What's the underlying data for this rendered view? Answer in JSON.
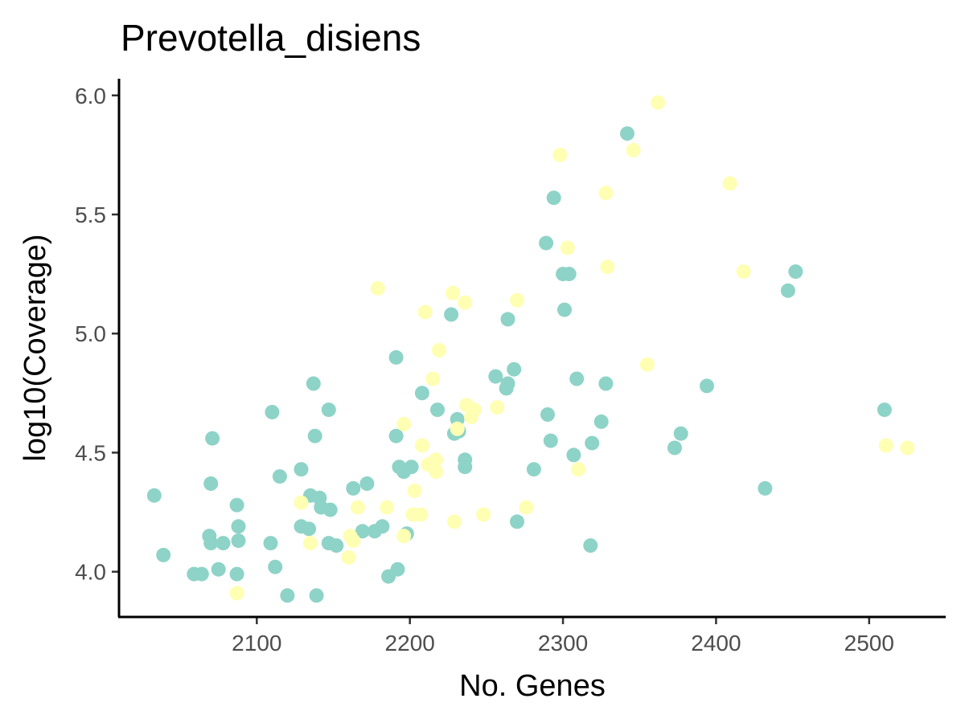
{
  "chart_data": {
    "type": "scatter",
    "title": "Prevotella_disiens",
    "xlabel": "No. Genes",
    "ylabel": "log10(Coverage)",
    "xlim": [
      2010,
      2550
    ],
    "ylim": [
      3.81,
      6.07
    ],
    "x_ticks": [
      2100,
      2200,
      2300,
      2400,
      2500
    ],
    "y_ticks": [
      4.0,
      4.5,
      5.0,
      5.5,
      6.0
    ],
    "x_tick_labels": [
      "2100",
      "2200",
      "2300",
      "2400",
      "2500"
    ],
    "y_tick_labels": [
      "4.0",
      "4.5",
      "5.0",
      "5.5",
      "6.0"
    ],
    "grid": false,
    "legend": "none",
    "series": [
      {
        "color": "#8ed3c7",
        "points": [
          [
            2033,
            4.32
          ],
          [
            2039,
            4.07
          ],
          [
            2059,
            3.99
          ],
          [
            2064,
            3.99
          ],
          [
            2069,
            4.15
          ],
          [
            2070,
            4.12
          ],
          [
            2070,
            4.37
          ],
          [
            2071,
            4.56
          ],
          [
            2075,
            4.01
          ],
          [
            2078,
            4.12
          ],
          [
            2087,
            4.28
          ],
          [
            2087,
            3.99
          ],
          [
            2088,
            4.13
          ],
          [
            2088,
            4.19
          ],
          [
            2109,
            4.12
          ],
          [
            2110,
            4.67
          ],
          [
            2112,
            4.02
          ],
          [
            2115,
            4.4
          ],
          [
            2120,
            3.9
          ],
          [
            2129,
            4.19
          ],
          [
            2129,
            4.43
          ],
          [
            2134,
            4.18
          ],
          [
            2135,
            4.32
          ],
          [
            2137,
            4.79
          ],
          [
            2138,
            4.57
          ],
          [
            2139,
            3.9
          ],
          [
            2141,
            4.31
          ],
          [
            2142,
            4.27
          ],
          [
            2147,
            4.12
          ],
          [
            2147,
            4.68
          ],
          [
            2148,
            4.26
          ],
          [
            2152,
            4.11
          ],
          [
            2163,
            4.35
          ],
          [
            2169,
            4.17
          ],
          [
            2172,
            4.37
          ],
          [
            2177,
            4.17
          ],
          [
            2182,
            4.19
          ],
          [
            2186,
            3.98
          ],
          [
            2191,
            4.57
          ],
          [
            2191,
            4.9
          ],
          [
            2192,
            4.01
          ],
          [
            2193,
            4.44
          ],
          [
            2196,
            4.42
          ],
          [
            2198,
            4.16
          ],
          [
            2201,
            4.44
          ],
          [
            2208,
            4.75
          ],
          [
            2218,
            4.68
          ],
          [
            2227,
            5.08
          ],
          [
            2229,
            4.58
          ],
          [
            2231,
            4.64
          ],
          [
            2232,
            4.59
          ],
          [
            2236,
            4.47
          ],
          [
            2236,
            4.44
          ],
          [
            2256,
            4.82
          ],
          [
            2263,
            4.77
          ],
          [
            2264,
            4.79
          ],
          [
            2264,
            5.06
          ],
          [
            2268,
            4.85
          ],
          [
            2270,
            4.21
          ],
          [
            2281,
            4.43
          ],
          [
            2289,
            5.38
          ],
          [
            2290,
            4.66
          ],
          [
            2292,
            4.55
          ],
          [
            2294,
            5.57
          ],
          [
            2300,
            5.25
          ],
          [
            2301,
            5.1
          ],
          [
            2304,
            5.25
          ],
          [
            2307,
            4.49
          ],
          [
            2309,
            4.81
          ],
          [
            2318,
            4.11
          ],
          [
            2319,
            4.54
          ],
          [
            2325,
            4.63
          ],
          [
            2328,
            4.79
          ],
          [
            2342,
            5.84
          ],
          [
            2373,
            4.52
          ],
          [
            2377,
            4.58
          ],
          [
            2394,
            4.78
          ],
          [
            2432,
            4.35
          ],
          [
            2447,
            5.18
          ],
          [
            2452,
            5.26
          ],
          [
            2510,
            4.68
          ]
        ]
      },
      {
        "color": "#ffffb3",
        "points": [
          [
            2087,
            3.91
          ],
          [
            2129,
            4.29
          ],
          [
            2135,
            4.12
          ],
          [
            2160,
            4.06
          ],
          [
            2161,
            4.15
          ],
          [
            2163,
            4.13
          ],
          [
            2166,
            4.27
          ],
          [
            2179,
            5.19
          ],
          [
            2185,
            4.27
          ],
          [
            2196,
            4.62
          ],
          [
            2196,
            4.15
          ],
          [
            2202,
            4.24
          ],
          [
            2203,
            4.34
          ],
          [
            2207,
            4.24
          ],
          [
            2208,
            4.53
          ],
          [
            2210,
            5.09
          ],
          [
            2212,
            4.45
          ],
          [
            2215,
            4.81
          ],
          [
            2217,
            4.47
          ],
          [
            2217,
            4.42
          ],
          [
            2219,
            4.93
          ],
          [
            2228,
            5.17
          ],
          [
            2229,
            4.21
          ],
          [
            2231,
            4.6
          ],
          [
            2236,
            5.13
          ],
          [
            2237,
            4.7
          ],
          [
            2240,
            4.65
          ],
          [
            2242,
            4.68
          ],
          [
            2248,
            4.24
          ],
          [
            2257,
            4.69
          ],
          [
            2270,
            5.14
          ],
          [
            2276,
            4.27
          ],
          [
            2298,
            5.75
          ],
          [
            2303,
            5.36
          ],
          [
            2310,
            4.43
          ],
          [
            2328,
            5.59
          ],
          [
            2329,
            5.28
          ],
          [
            2346,
            5.77
          ],
          [
            2355,
            4.87
          ],
          [
            2362,
            5.97
          ],
          [
            2409,
            5.63
          ],
          [
            2418,
            5.26
          ],
          [
            2511,
            4.53
          ],
          [
            2525,
            4.52
          ]
        ]
      }
    ]
  }
}
